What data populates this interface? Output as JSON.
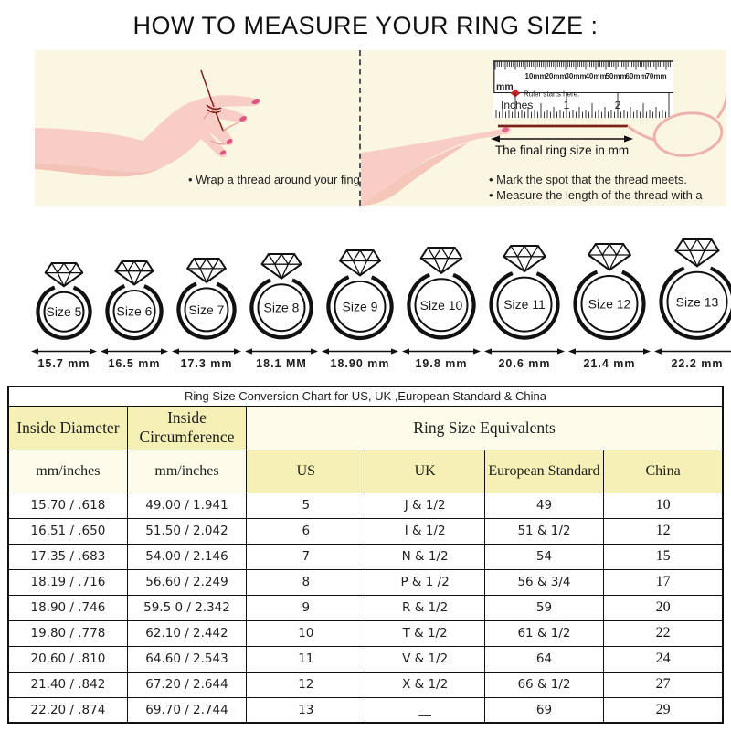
{
  "title": "HOW TO MEASURE YOUR RING SIZE :",
  "panels": {
    "left": {
      "bullet": "• Wrap a thread around your finger"
    },
    "right": {
      "ruler": {
        "mm_unit_label": "mm",
        "mm_labels": [
          "10mm",
          "20mm",
          "30mm",
          "40mm",
          "50mm",
          "60mm",
          "70mm"
        ],
        "starts_here_label": "Ruler starts here.",
        "inches_label": "Inches",
        "inch_numbers": [
          "1",
          "2"
        ]
      },
      "arrow_label": "The final ring size in mm",
      "bullets": [
        "• Mark the spot that the thread meets.",
        "• Measure the length of the thread with a ruler"
      ]
    }
  },
  "rings": [
    {
      "label": "Size 5",
      "mm": "15.7 mm",
      "d": 62
    },
    {
      "label": "Size 6",
      "mm": "16.5 mm",
      "d": 64
    },
    {
      "label": "Size 7",
      "mm": "17.3 mm",
      "d": 66
    },
    {
      "label": "Size 8",
      "mm": "18.1 MM",
      "d": 70
    },
    {
      "label": "Size 9",
      "mm": "18.90 mm",
      "d": 74
    },
    {
      "label": "Size 10",
      "mm": "19.8 mm",
      "d": 76
    },
    {
      "label": "Size 11",
      "mm": "20.6 mm",
      "d": 78
    },
    {
      "label": "Size 12",
      "mm": "21.4 mm",
      "d": 80
    },
    {
      "label": "Size 13",
      "mm": "22.2 mm",
      "d": 84
    }
  ],
  "table": {
    "title": "Ring Size Conversion Chart for US, UK ,European Standard & China",
    "group_headers": {
      "inside_diameter": "Inside Diameter",
      "inside_circumference": "Inside Circumference",
      "ring_size_equivalents": "Ring Size Equivalents"
    },
    "sub_headers": [
      "mm/inches",
      "mm/inches",
      "US",
      "UK",
      "European Standard",
      "China"
    ],
    "rows": [
      [
        "15.70 / .618",
        "49.00 / 1.941",
        "5",
        "J & 1/2",
        "49",
        "10"
      ],
      [
        "16.51 / .650",
        "51.50 / 2.042",
        "6",
        "I & 1/2",
        "51 & 1/2",
        "12"
      ],
      [
        "17.35 / .683",
        "54.00 / 2.146",
        "7",
        "N & 1/2",
        "54",
        "15"
      ],
      [
        "18.19 / .716",
        "56.60 / 2.249",
        "8",
        "P & 1 /2",
        "56 & 3/4",
        "17"
      ],
      [
        "18.90 / .746",
        "59.5 0 / 2.342",
        "9",
        "R & 1/2",
        "59",
        "20"
      ],
      [
        "19.80 / .778",
        "62.10 / 2.442",
        "10",
        "T & 1/2",
        "61 & 1/2",
        "22"
      ],
      [
        "20.60 / .810",
        "64.60 / 2.543",
        "11",
        "V & 1/2",
        "64",
        "24"
      ],
      [
        "21.40 / .842",
        "67.20 / 2.644",
        "12",
        "X & 1/2",
        "66 & 1/2",
        "27"
      ],
      [
        "22.20 / .874",
        "69.70 / 2.744",
        "13",
        "__",
        "69",
        "29"
      ]
    ]
  },
  "colors": {
    "cream": "#FBF6E1",
    "yellow": "#F5F0B5",
    "lightyellow": "#FDFBEA",
    "skin": "#F8CDC5",
    "skinshadow": "#F2B2AA",
    "nail": "#DB5680",
    "thread": "#7E1F18",
    "red": "#C62828",
    "pinkthread": "#ECB3AC"
  }
}
